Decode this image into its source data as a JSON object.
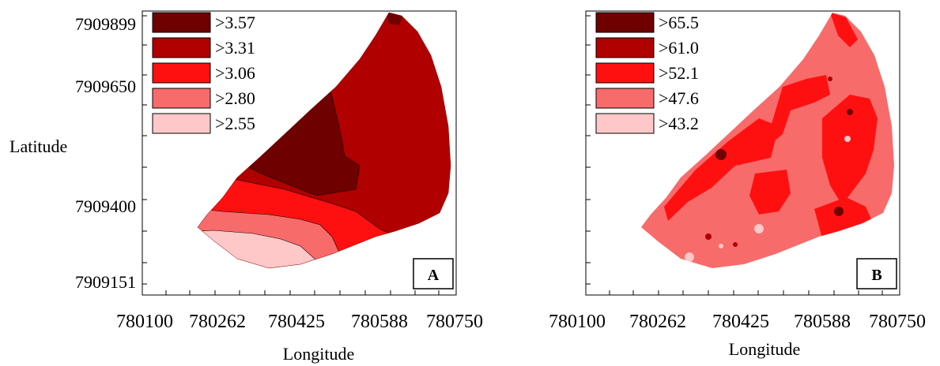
{
  "shared": {
    "y_axis_label": "Latitude",
    "x_axis_label": "Longitude",
    "y_ticks": [
      "7909899",
      "7909650",
      "7909400",
      "7909151"
    ],
    "x_ticks": [
      "780100",
      "780262",
      "780425",
      "780588",
      "780750"
    ]
  },
  "panels": [
    {
      "panel_label": "A",
      "legend": [
        {
          "label": ">3.57",
          "color": "#6e0000"
        },
        {
          "label": ">3.31",
          "color": "#b00000"
        },
        {
          "label": ">3.06",
          "color": "#ff1010"
        },
        {
          "label": ">2.80",
          "color": "#f86b6b"
        },
        {
          "label": ">2.55",
          "color": "#ffc8c8"
        }
      ]
    },
    {
      "panel_label": "B",
      "legend": [
        {
          "label": ">65.5",
          "color": "#6e0000"
        },
        {
          "label": ">61.0",
          "color": "#b00000"
        },
        {
          "label": ">52.1",
          "color": "#ff1010"
        },
        {
          "label": ">47.6",
          "color": "#f86b6b"
        },
        {
          "label": ">43.2",
          "color": "#ffc8c8"
        }
      ]
    }
  ],
  "colors": {
    "class1": "#6e0000",
    "class2": "#b00000",
    "class3": "#ff1010",
    "class4": "#f86b6b",
    "class5": "#ffc8c8"
  }
}
